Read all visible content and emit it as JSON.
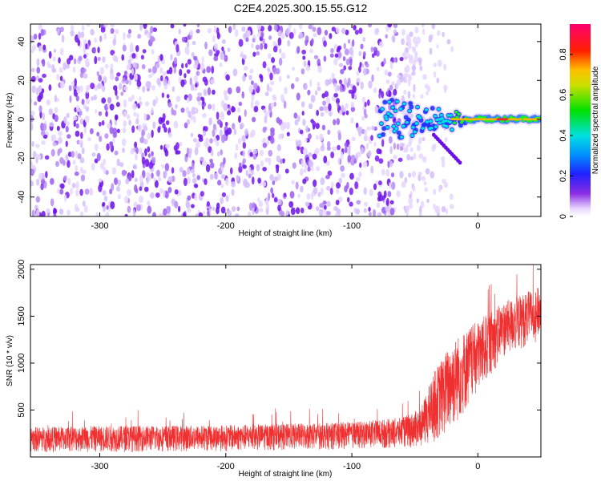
{
  "title": "C2E4.2025.300.15.55.G12",
  "chart_data": [
    {
      "type": "heatmap",
      "xlabel": "Height of straight line (km)",
      "ylabel": "Frequency (Hz)",
      "xlim": [
        -355,
        50
      ],
      "ylim": [
        -50,
        49
      ],
      "x_ticks": [
        -300,
        -200,
        -100,
        0
      ],
      "y_ticks": [
        -40,
        -20,
        0,
        20,
        40
      ],
      "colorbar": {
        "label": "Normalized spectral amplitude",
        "range": [
          0,
          0.95
        ],
        "ticks": [
          0,
          0.2,
          0.4,
          0.6,
          0.8
        ],
        "colormap": "rainbow: white-violet-blue-cyan-green-yellow-red-magenta"
      },
      "features": {
        "broadband_noise_x_range": [
          -355,
          -45
        ],
        "narrowband_signal_x_range": [
          -78,
          50
        ],
        "signal_frequency_hz": 0
      },
      "colors": {
        "noise": "#7a1bf0",
        "signal": "#ff3030"
      }
    },
    {
      "type": "line",
      "xlabel": "Height of straight line (km)",
      "ylabel": "SNR (10 * v/v)",
      "xlim": [
        -355,
        50
      ],
      "ylim": [
        0,
        2050
      ],
      "x_ticks": [
        -300,
        -200,
        -100,
        0
      ],
      "y_ticks": [
        500,
        1000,
        1500,
        2000
      ],
      "series": [
        {
          "envelope": [
            {
              "x": -355,
              "low": 50,
              "high": 320
            },
            {
              "x": -300,
              "low": 50,
              "high": 330
            },
            {
              "x": -200,
              "low": 60,
              "high": 340
            },
            {
              "x": -100,
              "low": 80,
              "high": 370
            },
            {
              "x": -60,
              "low": 90,
              "high": 420
            },
            {
              "x": -45,
              "low": 100,
              "high": 520
            },
            {
              "x": -35,
              "low": 150,
              "high": 900
            },
            {
              "x": -20,
              "low": 280,
              "high": 1250
            },
            {
              "x": 0,
              "low": 650,
              "high": 1450
            },
            {
              "x": 20,
              "low": 1050,
              "high": 1650
            },
            {
              "x": 50,
              "low": 1250,
              "high": 1820
            }
          ],
          "peak_max": 2050,
          "color": "#f03030"
        }
      ]
    }
  ]
}
